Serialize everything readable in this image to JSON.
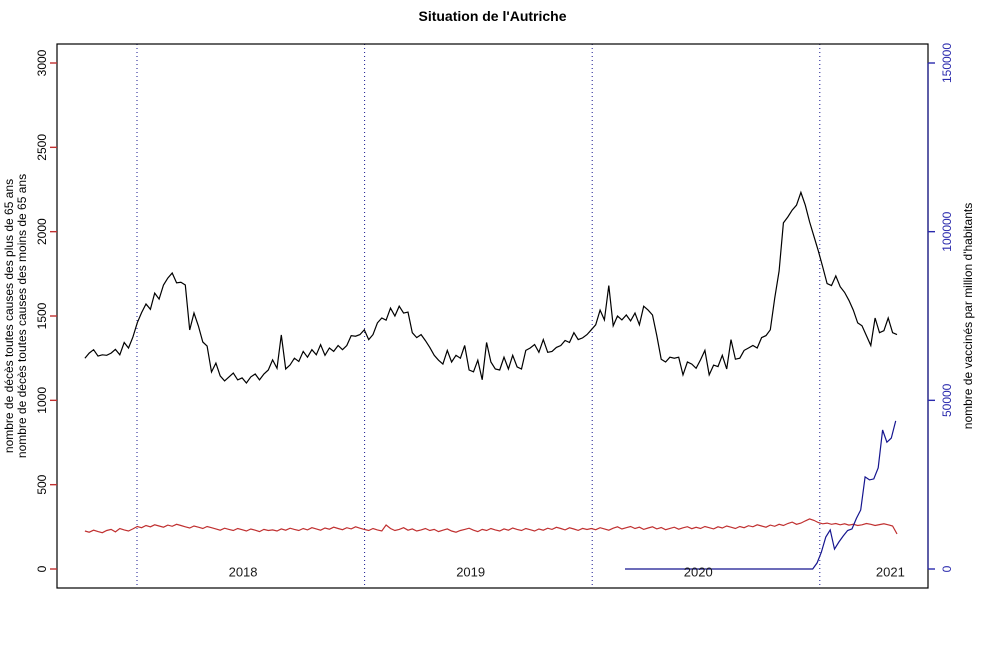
{
  "title": "Situation de l'Autriche",
  "chart_data": {
    "type": "line",
    "title": "Situation de l'Autriche",
    "frequency": "weekly",
    "grid": "off",
    "legend": "none",
    "x_axis": {
      "year_labels": [
        "2018",
        "2019",
        "2020",
        "2021"
      ],
      "year_boundary_dotted_lines": [
        2018,
        2019,
        2020,
        2021
      ],
      "range_years": [
        2017.648,
        2021.477
      ]
    },
    "left_axis": {
      "title_line_black": "nombre de décès toutes causes des plus de 65 ans",
      "title_line_red": "nombre de décès toutes causes des moins de 65 ans",
      "tick_labels": [
        "0",
        "500",
        "1000",
        "1500",
        "2000",
        "2500",
        "3000"
      ],
      "ticks": [
        0,
        500,
        1000,
        1500,
        2000,
        2500,
        3000
      ],
      "range": [
        0,
        3000
      ],
      "tick_color": "#c03030",
      "label_color": "#000000"
    },
    "right_axis": {
      "title": "nombre de vaccinés par million d'habitants",
      "tick_labels": [
        "0",
        "50000",
        "100000",
        "150000"
      ],
      "ticks": [
        0,
        50000,
        100000,
        150000
      ],
      "range": [
        0,
        150000
      ],
      "tick_color": "#2a2aad",
      "label_color": "#2a2aad"
    },
    "series": [
      {
        "name": "deces_toutes_causes_plus_de_65_ans",
        "color": "#000000",
        "axis": "left",
        "start_year": 2017.771,
        "points_per_year": 52.13,
        "values": [
          1250,
          1280,
          1300,
          1262,
          1270,
          1267,
          1280,
          1302,
          1270,
          1343,
          1310,
          1375,
          1460,
          1520,
          1571,
          1540,
          1636,
          1600,
          1684,
          1725,
          1755,
          1696,
          1700,
          1684,
          1417,
          1518,
          1441,
          1346,
          1322,
          1168,
          1221,
          1145,
          1115,
          1139,
          1162,
          1121,
          1133,
          1103,
          1139,
          1156,
          1121,
          1156,
          1180,
          1240,
          1190,
          1388,
          1186,
          1210,
          1250,
          1230,
          1290,
          1256,
          1300,
          1270,
          1330,
          1267,
          1310,
          1290,
          1325,
          1300,
          1325,
          1384,
          1380,
          1390,
          1418,
          1360,
          1390,
          1459,
          1488,
          1475,
          1547,
          1500,
          1558,
          1517,
          1523,
          1401,
          1372,
          1390,
          1354,
          1314,
          1267,
          1238,
          1215,
          1296,
          1227,
          1267,
          1250,
          1325,
          1180,
          1169,
          1238,
          1122,
          1343,
          1227,
          1186,
          1180,
          1256,
          1186,
          1267,
          1198,
          1186,
          1296,
          1310,
          1331,
          1285,
          1360,
          1285,
          1290,
          1314,
          1325,
          1355,
          1343,
          1401,
          1360,
          1370,
          1390,
          1418,
          1448,
          1535,
          1477,
          1680,
          1442,
          1500,
          1477,
          1506,
          1471,
          1517,
          1448,
          1558,
          1535,
          1506,
          1384,
          1244,
          1227,
          1256,
          1250,
          1256,
          1151,
          1227,
          1215,
          1190,
          1240,
          1296,
          1151,
          1209,
          1200,
          1267,
          1186,
          1360,
          1244,
          1250,
          1296,
          1310,
          1325,
          1310,
          1372,
          1384,
          1418,
          1605,
          1767,
          2052,
          2087,
          2128,
          2157,
          2233,
          2157,
          2058,
          1971,
          1884,
          1791,
          1692,
          1680,
          1738,
          1674,
          1640,
          1593,
          1535,
          1459,
          1442,
          1384,
          1325,
          1488,
          1401,
          1413,
          1488,
          1401,
          1390
        ]
      },
      {
        "name": "deces_toutes_causes_moins_de_65_ans",
        "color": "#c03030",
        "axis": "left",
        "start_year": 2017.771,
        "points_per_year": 52.13,
        "values": [
          225,
          218,
          230,
          222,
          215,
          228,
          235,
          220,
          240,
          232,
          225,
          238,
          252,
          245,
          258,
          250,
          262,
          255,
          248,
          260,
          253,
          265,
          258,
          250,
          243,
          255,
          248,
          240,
          252,
          245,
          238,
          230,
          242,
          235,
          228,
          240,
          233,
          225,
          237,
          230,
          222,
          235,
          228,
          232,
          225,
          238,
          230,
          242,
          235,
          228,
          240,
          232,
          245,
          238,
          230,
          243,
          236,
          248,
          240,
          233,
          245,
          238,
          250,
          242,
          235,
          228,
          240,
          232,
          225,
          261,
          240,
          228,
          235,
          245,
          230,
          238,
          225,
          232,
          240,
          228,
          235,
          222,
          230,
          238,
          225,
          218,
          228,
          235,
          242,
          230,
          222,
          235,
          228,
          240,
          232,
          225,
          238,
          230,
          243,
          235,
          228,
          240,
          233,
          225,
          237,
          230,
          242,
          235,
          247,
          240,
          232,
          244,
          237,
          229,
          241,
          234,
          240,
          233,
          245,
          238,
          230,
          242,
          250,
          237,
          245,
          252,
          240,
          248,
          235,
          243,
          250,
          238,
          246,
          233,
          241,
          248,
          236,
          244,
          251,
          239,
          247,
          240,
          252,
          245,
          238,
          250,
          243,
          255,
          248,
          240,
          252,
          245,
          257,
          250,
          262,
          255,
          248,
          260,
          253,
          265,
          258,
          270,
          278,
          265,
          272,
          285,
          297,
          288,
          275,
          268,
          272,
          265,
          270,
          262,
          268,
          260,
          265,
          258,
          262,
          270,
          265,
          258,
          263,
          268,
          262,
          255,
          208
        ]
      },
      {
        "name": "vaccines_par_million_habitants",
        "color": "#15158f",
        "axis": "right",
        "start_year": 2020.144,
        "points_per_year": 52.13,
        "values": [
          0,
          0,
          0,
          0,
          0,
          0,
          0,
          0,
          0,
          0,
          0,
          0,
          0,
          0,
          0,
          0,
          0,
          0,
          0,
          0,
          0,
          0,
          0,
          0,
          0,
          0,
          0,
          0,
          0,
          0,
          0,
          0,
          0,
          0,
          0,
          0,
          0,
          0,
          0,
          0,
          0,
          0,
          0,
          0,
          1800,
          5000,
          9500,
          11600,
          5900,
          8000,
          9800,
          11400,
          11900,
          15000,
          17500,
          27300,
          26400,
          26700,
          30000,
          41200,
          37600,
          38800,
          43900
        ]
      }
    ]
  },
  "colors": {
    "background": "#ffffff",
    "plot_border": "#000000",
    "dotted_year_line": "#15158f",
    "year_label": "#1a1a1a",
    "right_axis_blue": "#2a2aad",
    "left_red": "#c03030"
  }
}
